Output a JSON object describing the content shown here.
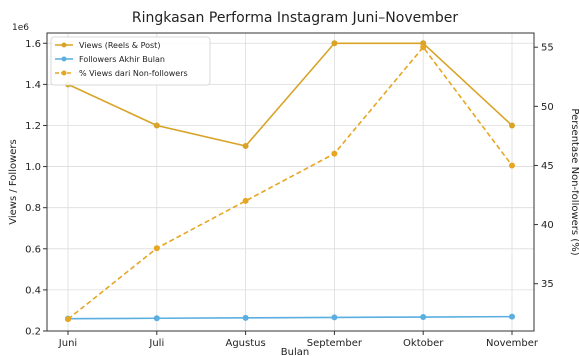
{
  "chart_data": {
    "type": "line",
    "title": "Ringkasan Performa Instagram Juni–November",
    "xlabel": "Bulan",
    "ylabel_left": "Views / Followers",
    "ylabel_right": "Persentase Non-followers (%)",
    "offset_label": "1e6",
    "categories": [
      "Juni",
      "Juli",
      "Agustus",
      "September",
      "Oktober",
      "November"
    ],
    "y_left_range": [
      0.2,
      1.65
    ],
    "y_left_ticks": [
      "0.2",
      "0.4",
      "0.6",
      "0.8",
      "1.0",
      "1.2",
      "1.4",
      "1.6"
    ],
    "y_right_range": [
      31,
      56.2
    ],
    "y_right_ticks": [
      "35",
      "40",
      "45",
      "50",
      "55"
    ],
    "grid": true,
    "legend_position": "top-left",
    "series": [
      {
        "name": "Views (Reels & Post)",
        "axis": "left",
        "style": "solid",
        "color": "#d9a327",
        "values": [
          1.4,
          1.2,
          1.1,
          1.6,
          1.6,
          1.2
        ]
      },
      {
        "name": "Followers Akhir Bulan",
        "axis": "left",
        "style": "solid",
        "color": "#5aaee0",
        "values": [
          0.26,
          0.262,
          0.264,
          0.266,
          0.268,
          0.27
        ]
      },
      {
        "name": "% Views dari Non-followers",
        "axis": "right",
        "style": "dashed",
        "color": "#e6a623",
        "values": [
          32,
          38,
          42,
          46,
          55,
          45
        ]
      }
    ]
  }
}
